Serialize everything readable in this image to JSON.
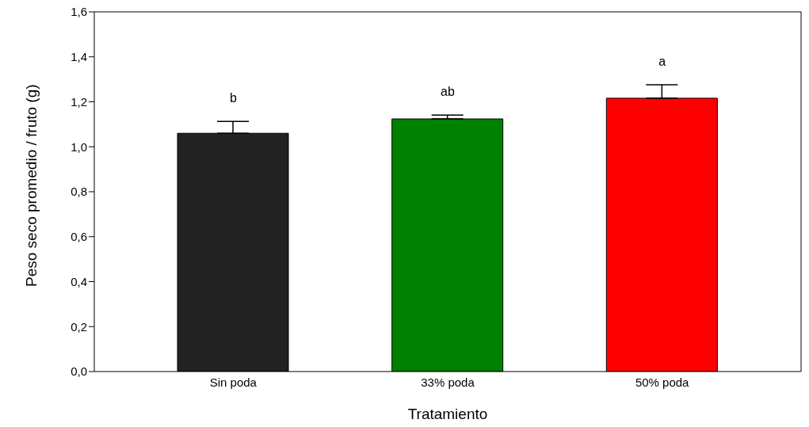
{
  "chart_data": {
    "type": "bar",
    "xlabel": "Tratamiento",
    "ylabel": "Peso seco promedio / fruto (g)",
    "categories": [
      "Sin poda",
      "33% poda",
      "50% poda"
    ],
    "values": [
      1.06,
      1.124,
      1.216
    ],
    "colors": [
      "#222222",
      "#008000",
      "#ff0000"
    ],
    "errors": [
      [
        1.06,
        1.113
      ],
      [
        1.124,
        1.141
      ],
      [
        1.216,
        1.276
      ]
    ],
    "ylim": [
      0,
      1.6
    ],
    "yticks": [
      {
        "value": 0,
        "label": "0,0"
      },
      {
        "value": 0.2,
        "label": "0,2"
      },
      {
        "value": 0.4,
        "label": "0,4"
      },
      {
        "value": 0.6,
        "label": "0,6"
      },
      {
        "value": 0.8,
        "label": "0,8"
      },
      {
        "value": 1.0,
        "label": "1,0"
      },
      {
        "value": 1.2,
        "label": "1,2"
      },
      {
        "value": 1.4,
        "label": "1,4"
      },
      {
        "value": 1.6,
        "label": "1,6"
      }
    ],
    "annotations": [
      "b",
      "ab",
      "a"
    ],
    "grid": false,
    "legend": false
  }
}
